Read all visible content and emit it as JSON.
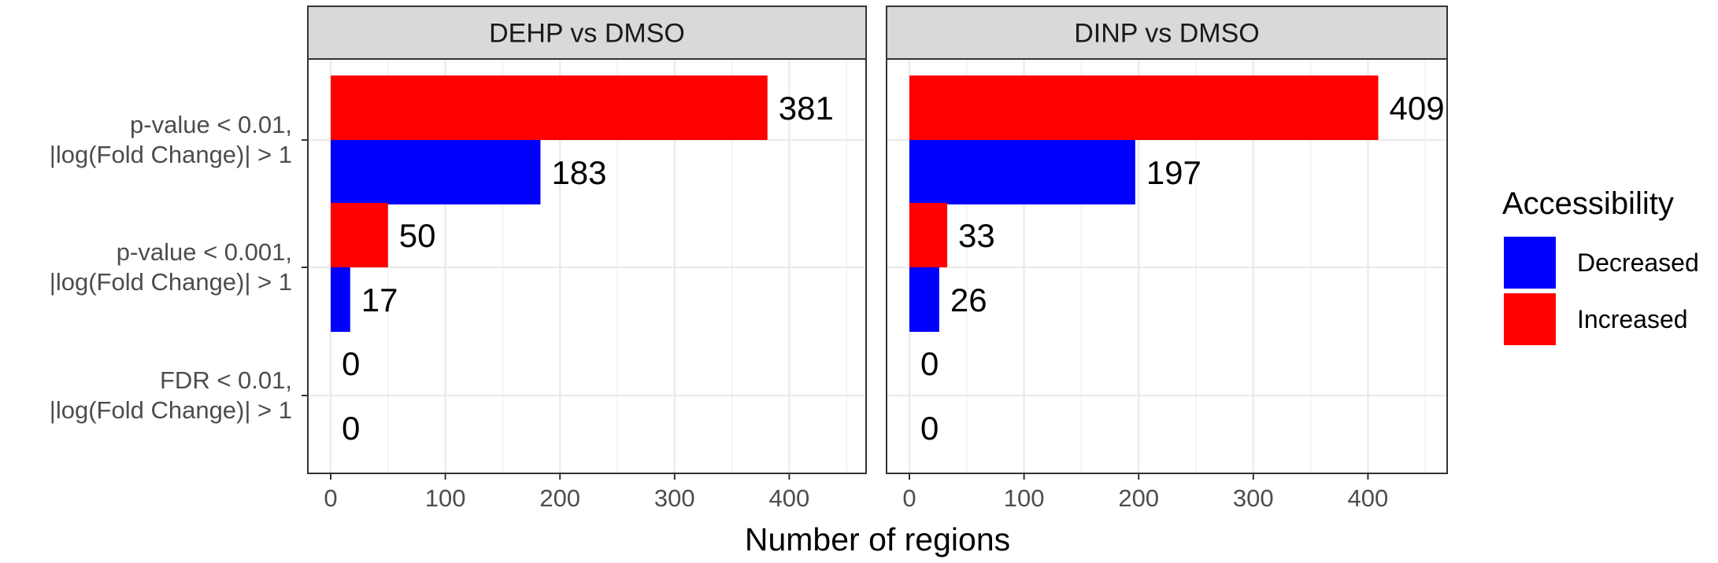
{
  "chart_data": {
    "type": "bar",
    "orientation": "horizontal",
    "facets": [
      "DEHP vs DMSO",
      "DINP vs DMSO"
    ],
    "categories": [
      [
        "p-value < 0.01,",
        "|log(Fold Change)| > 1"
      ],
      [
        "p-value < 0.001,",
        "|log(Fold Change)| > 1"
      ],
      [
        "FDR < 0.01,",
        "|log(Fold Change)| > 1"
      ]
    ],
    "series": [
      {
        "name": "Increased",
        "color": "#ff0000",
        "values": [
          [
            381,
            50,
            0
          ],
          [
            409,
            33,
            0
          ]
        ]
      },
      {
        "name": "Decreased",
        "color": "#0000ff",
        "values": [
          [
            183,
            17,
            0
          ],
          [
            197,
            26,
            0
          ]
        ]
      }
    ],
    "xlabel": "Number of regions",
    "ylabel": "",
    "xlim": [
      -20,
      470
    ],
    "xticks": [
      0,
      100,
      200,
      300,
      400
    ],
    "grid": true,
    "legend": {
      "title": "Accessibility",
      "position": "right",
      "items": [
        {
          "label": "Decreased",
          "color": "#0000ff"
        },
        {
          "label": "Increased",
          "color": "#ff0000"
        }
      ]
    }
  }
}
